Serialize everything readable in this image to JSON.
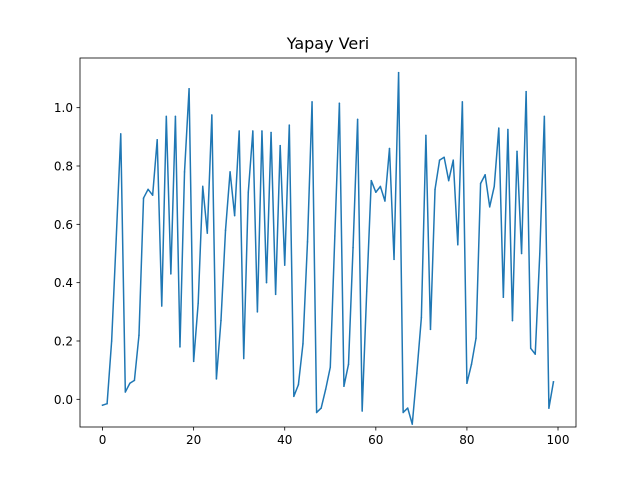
{
  "chart_data": {
    "type": "line",
    "title": "Yapay Veri",
    "xlabel": "",
    "ylabel": "",
    "xlim": [
      -4.95,
      103.95
    ],
    "ylim": [
      -0.0949,
      1.1703
    ],
    "xticks": [
      0,
      20,
      40,
      60,
      80,
      100
    ],
    "yticks": [
      0.0,
      0.2,
      0.4,
      0.6,
      0.8,
      1.0
    ],
    "xtick_labels": [
      "0",
      "20",
      "40",
      "60",
      "80",
      "100"
    ],
    "ytick_labels": [
      "0.0",
      "0.2",
      "0.4",
      "0.6",
      "0.8",
      "1.0"
    ],
    "grid": false,
    "legend": "none",
    "series": [
      {
        "color": "#1f77b4",
        "x": [
          0,
          1,
          2,
          3,
          4,
          5,
          6,
          7,
          8,
          9,
          10,
          11,
          12,
          13,
          14,
          15,
          16,
          17,
          18,
          19,
          20,
          21,
          22,
          23,
          24,
          25,
          26,
          27,
          28,
          29,
          30,
          31,
          32,
          33,
          34,
          35,
          36,
          37,
          38,
          39,
          40,
          41,
          42,
          43,
          44,
          45,
          46,
          47,
          48,
          49,
          50,
          51,
          52,
          53,
          54,
          55,
          56,
          57,
          58,
          59,
          60,
          61,
          62,
          63,
          64,
          65,
          66,
          67,
          68,
          69,
          70,
          71,
          72,
          73,
          74,
          75,
          76,
          77,
          78,
          79,
          80,
          81,
          82,
          83,
          84,
          85,
          86,
          87,
          88,
          89,
          90,
          91,
          92,
          93,
          94,
          95,
          96,
          97,
          98,
          99
        ],
        "values": [
          -0.02,
          -0.015,
          0.2,
          0.55,
          0.91,
          0.025,
          0.055,
          0.065,
          0.22,
          0.69,
          0.72,
          0.7,
          0.89,
          0.32,
          0.97,
          0.43,
          0.97,
          0.18,
          0.78,
          1.065,
          0.13,
          0.33,
          0.73,
          0.57,
          0.975,
          0.07,
          0.27,
          0.58,
          0.78,
          0.63,
          0.92,
          0.14,
          0.71,
          0.92,
          0.3,
          0.92,
          0.4,
          0.915,
          0.36,
          0.87,
          0.46,
          0.94,
          0.01,
          0.05,
          0.19,
          0.54,
          1.02,
          -0.045,
          -0.03,
          0.035,
          0.11,
          0.56,
          1.015,
          0.045,
          0.12,
          0.52,
          0.96,
          -0.04,
          0.37,
          0.75,
          0.71,
          0.73,
          0.68,
          0.86,
          0.48,
          1.12,
          -0.045,
          -0.03,
          -0.085,
          0.09,
          0.28,
          0.905,
          0.24,
          0.72,
          0.82,
          0.83,
          0.75,
          0.82,
          0.53,
          1.02,
          0.055,
          0.12,
          0.21,
          0.74,
          0.77,
          0.66,
          0.73,
          0.93,
          0.35,
          0.925,
          0.27,
          0.85,
          0.5,
          1.055,
          0.175,
          0.155,
          0.5,
          0.97,
          -0.03,
          0.06
        ]
      }
    ]
  }
}
